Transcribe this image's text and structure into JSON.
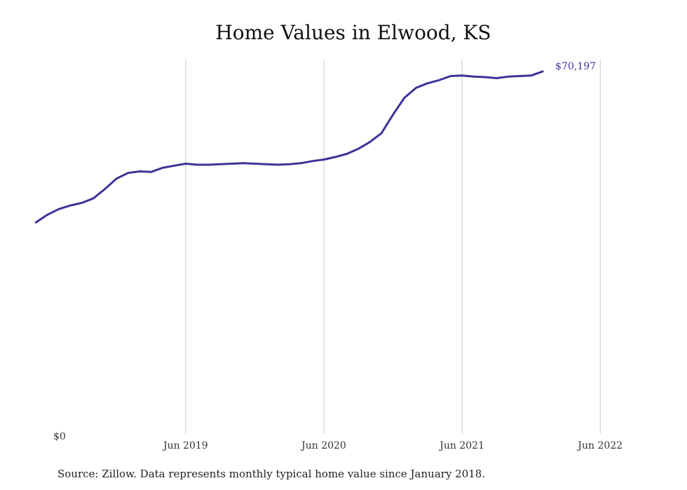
{
  "chart_data": {
    "type": "line",
    "title": "Home Values in Elwood, KS",
    "xlabel": "",
    "ylabel": "",
    "y_tick_labels": [
      "$0"
    ],
    "x_tick_labels": [
      "Jun 2019",
      "Jun 2020",
      "Jun 2021",
      "Jun 2022"
    ],
    "x_tick_months": [
      17,
      29,
      41,
      53
    ],
    "end_label": "$70,197",
    "ylim": [
      0,
      72500
    ],
    "grid": "vertical",
    "line_color": "#3b3499",
    "series": [
      {
        "start": "2018-05",
        "values": [
          40900,
          42400,
          43500,
          44200,
          44700,
          45600,
          47400,
          49400,
          50500,
          50800,
          50700,
          51500,
          51900,
          52300,
          52100,
          52100,
          52200,
          52300,
          52400,
          52300,
          52200,
          52100,
          52200,
          52400,
          52800,
          53100,
          53600,
          54200,
          55200,
          56500,
          58200,
          61800,
          65100,
          67000,
          67900,
          68500,
          69300,
          69400,
          69200,
          69100,
          68900,
          69200,
          69300,
          69400,
          70197
        ]
      }
    ]
  },
  "source": "Source: Zillow. Data represents monthly typical home value since January 2018."
}
